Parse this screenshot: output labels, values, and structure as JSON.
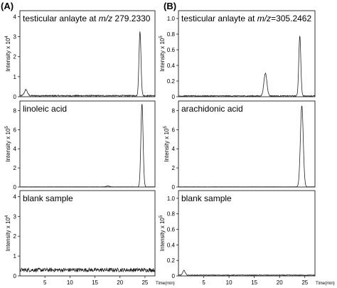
{
  "figure": {
    "panel_letters": [
      "(A)",
      "(B)"
    ]
  },
  "chart_data": [
    {
      "id": "A1",
      "type": "line",
      "title_pre": "testicular anlayte at ",
      "title_italic": "m/z",
      "title_post": " 279.2330",
      "ylabel": "Intensity x 10",
      "yexp": "4",
      "xlim": [
        0,
        27
      ],
      "ylim": [
        0,
        4.3
      ],
      "yticks": [
        0,
        1,
        2,
        3,
        4
      ],
      "ytick_labels": [
        "0",
        "1",
        "2",
        "3",
        "4"
      ],
      "baseline": 0.05,
      "noise": 0.03,
      "peaks": [
        {
          "x": 1.2,
          "h": 0.3,
          "w": 0.3
        },
        {
          "x": 24.0,
          "h": 3.2,
          "w": 0.2
        }
      ]
    },
    {
      "id": "A2",
      "type": "line",
      "title": "linoleic acid",
      "ylabel": "Intensity x 10",
      "yexp": "5",
      "xlim": [
        0,
        27
      ],
      "ylim": [
        0,
        9
      ],
      "yticks": [
        0,
        2,
        4,
        6,
        8
      ],
      "ytick_labels": [
        "0",
        "2",
        "4",
        "6",
        "8"
      ],
      "baseline": 0.02,
      "noise": 0.01,
      "peaks": [
        {
          "x": 17.6,
          "h": 0.1,
          "w": 0.3
        },
        {
          "x": 24.4,
          "h": 8.7,
          "w": 0.22
        }
      ]
    },
    {
      "id": "A3",
      "type": "line",
      "title": "blank sample",
      "ylabel": "Intensity x 10",
      "yexp": "4",
      "xlim": [
        0,
        27
      ],
      "ylim": [
        0,
        4.3
      ],
      "yticks": [
        0,
        1,
        2,
        3,
        4
      ],
      "ytick_labels": [
        "0",
        "1",
        "2",
        "3",
        "4"
      ],
      "baseline": 0.3,
      "noise": 0.1,
      "x_tick_values": [
        5,
        10,
        15,
        20,
        25
      ],
      "x_tick_labels": [
        "5",
        "10",
        "15",
        "20",
        "25"
      ],
      "xlabel_unit": "Time(min)",
      "peaks": []
    },
    {
      "id": "B1",
      "type": "line",
      "title_pre": "testicular anlayte at ",
      "title_italic": "m/z",
      "title_post": "=305.2462",
      "ylabel": "Intensity x 10",
      "yexp": "5",
      "xlim": [
        0,
        27
      ],
      "ylim": [
        0,
        1.1
      ],
      "yticks": [
        0,
        0.2,
        0.4,
        0.6,
        0.8,
        1.0
      ],
      "ytick_labels": [
        "0",
        "0.2",
        "0.4",
        "0.6",
        "0.8",
        "1.0"
      ],
      "baseline": 0.01,
      "noise": 0.006,
      "peaks": [
        {
          "x": 17.2,
          "h": 0.29,
          "w": 0.3
        },
        {
          "x": 24.0,
          "h": 0.77,
          "w": 0.2
        }
      ]
    },
    {
      "id": "B2",
      "type": "line",
      "title": "arachidonic acid",
      "ylabel": "Intensity x 10",
      "yexp": "5",
      "xlim": [
        0,
        27
      ],
      "ylim": [
        0,
        9
      ],
      "yticks": [
        0,
        2,
        4,
        6,
        8
      ],
      "ytick_labels": [
        "0",
        "2",
        "4",
        "6",
        "8"
      ],
      "baseline": 0.02,
      "noise": 0.01,
      "peaks": [
        {
          "x": 24.4,
          "h": 8.5,
          "w": 0.28
        }
      ]
    },
    {
      "id": "B3",
      "type": "line",
      "title": "blank sample",
      "ylabel": "Intensity x 10",
      "yexp": "5",
      "xlim": [
        0,
        27
      ],
      "ylim": [
        0,
        1.1
      ],
      "yticks": [
        0,
        0.2,
        0.4,
        0.6,
        0.8,
        1.0
      ],
      "ytick_labels": [
        "0",
        "0.2",
        "0.4",
        "0.6",
        "0.8",
        "1.0"
      ],
      "baseline": 0.01,
      "noise": 0.004,
      "x_tick_values": [
        5,
        10,
        15,
        20,
        25
      ],
      "x_tick_labels": [
        "5",
        "10",
        "15",
        "20",
        "25"
      ],
      "xlabel_unit": "Time(min)",
      "peaks": [
        {
          "x": 1.1,
          "h": 0.06,
          "w": 0.25
        }
      ]
    }
  ]
}
